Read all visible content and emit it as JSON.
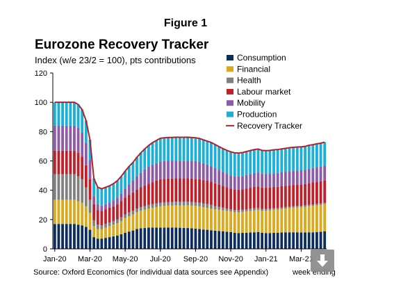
{
  "figure_label": "Figure 1",
  "source_note": "Source: Oxford Economics (for individual data sources see Appendix)",
  "x_unit_label": "week ending",
  "download_icon": "download-arrow-icon",
  "chart_data": {
    "type": "bar",
    "stacked": true,
    "title": "Eurozone Recovery Tracker",
    "subtitle": "Index (w/e 23/2 = 100), pts contributions",
    "xlabel": "week ending",
    "ylabel": "",
    "ylim": [
      0,
      120
    ],
    "yticks": [
      0,
      20,
      40,
      60,
      80,
      100,
      120
    ],
    "xtick_labels": [
      "Jan-20",
      "Mar-20",
      "May-20",
      "Jul-20",
      "Sep-20",
      "Nov-20",
      "Jan-21",
      "Mar-21"
    ],
    "xtick_positions": [
      0,
      9,
      18,
      27,
      36,
      45,
      54,
      63
    ],
    "grid": false,
    "legend_position": "top-right",
    "categories": [
      "w1",
      "w2",
      "w3",
      "w4",
      "w5",
      "w6",
      "w7",
      "w8",
      "w9",
      "w10",
      "w11",
      "w12",
      "w13",
      "w14",
      "w15",
      "w16",
      "w17",
      "w18",
      "w19",
      "w20",
      "w21",
      "w22",
      "w23",
      "w24",
      "w25",
      "w26",
      "w27",
      "w28",
      "w29",
      "w30",
      "w31",
      "w32",
      "w33",
      "w34",
      "w35",
      "w36",
      "w37",
      "w38",
      "w39",
      "w40",
      "w41",
      "w42",
      "w43",
      "w44",
      "w45",
      "w46",
      "w47",
      "w48",
      "w49",
      "w50",
      "w51",
      "w52",
      "w53",
      "w54",
      "w55",
      "w56",
      "w57",
      "w58",
      "w59",
      "w60",
      "w61",
      "w62",
      "w63",
      "w64",
      "w65",
      "w66",
      "w67",
      "w68",
      "w69",
      "w70"
    ],
    "series": [
      {
        "name": "Consumption",
        "color": "#0d2d5e",
        "values": [
          17.0,
          17.0,
          17.0,
          17.0,
          17.0,
          17.0,
          16.5,
          16.0,
          15.0,
          13.0,
          8.0,
          7.0,
          7.0,
          7.5,
          8.0,
          8.5,
          9.0,
          10.0,
          11.0,
          11.8,
          12.5,
          13.5,
          14.0,
          14.2,
          14.5,
          14.5,
          14.5,
          14.5,
          14.5,
          14.5,
          14.5,
          14.5,
          14.4,
          14.3,
          14.2,
          14.0,
          13.8,
          13.5,
          13.2,
          13.0,
          12.7,
          12.4,
          12.2,
          12.0,
          11.7,
          11.5,
          11.0,
          10.8,
          10.9,
          11.0,
          11.2,
          11.3,
          11.5,
          11.0,
          10.8,
          10.8,
          11.0,
          11.0,
          11.2,
          11.3,
          11.3,
          11.3,
          11.3,
          11.2,
          11.2,
          11.3,
          11.3,
          11.5,
          11.6,
          12.0
        ]
      },
      {
        "name": "Financial",
        "color": "#d9a91e",
        "values": [
          16.5,
          16.5,
          16.5,
          16.5,
          16.5,
          16.5,
          16.0,
          15.5,
          14.0,
          11.5,
          7.5,
          6.5,
          6.5,
          7.0,
          7.5,
          8.0,
          8.5,
          9.0,
          10.0,
          10.5,
          11.0,
          11.5,
          12.0,
          12.5,
          13.0,
          13.5,
          14.0,
          14.5,
          14.8,
          15.0,
          15.0,
          15.2,
          15.2,
          15.3,
          15.5,
          15.5,
          15.5,
          15.5,
          15.2,
          15.0,
          14.8,
          14.6,
          14.4,
          14.3,
          14.2,
          14.0,
          14.0,
          14.1,
          14.3,
          14.5,
          14.7,
          14.9,
          15.0,
          15.0,
          15.2,
          15.5,
          15.7,
          15.8,
          16.0,
          16.2,
          16.5,
          16.8,
          17.0,
          17.2,
          17.5,
          17.8,
          18.0,
          18.2,
          18.4,
          18.5
        ]
      },
      {
        "name": "Health",
        "color": "#808080",
        "values": [
          17.5,
          17.5,
          17.5,
          17.5,
          17.5,
          17.5,
          17.0,
          16.0,
          13.0,
          9.0,
          4.0,
          3.0,
          2.5,
          2.5,
          2.5,
          2.5,
          2.5,
          2.5,
          2.5,
          2.5,
          2.5,
          2.5,
          2.5,
          2.5,
          2.5,
          2.5,
          2.5,
          2.5,
          2.5,
          2.5,
          2.5,
          2.5,
          2.5,
          2.5,
          2.5,
          2.5,
          2.5,
          2.5,
          2.5,
          2.5,
          2.5,
          2.2,
          2.0,
          1.8,
          1.6,
          1.5,
          1.5,
          1.5,
          1.5,
          1.5,
          1.5,
          1.5,
          1.5,
          1.3,
          1.2,
          1.1,
          1.0,
          1.0,
          1.0,
          1.0,
          1.0,
          1.0,
          1.0,
          1.0,
          1.0,
          1.0,
          1.0,
          1.0,
          1.0,
          1.0
        ]
      },
      {
        "name": "Labour market",
        "color": "#c0202a",
        "values": [
          16.0,
          16.0,
          16.0,
          16.0,
          16.0,
          16.0,
          16.0,
          15.5,
          15.0,
          14.0,
          11.0,
          10.0,
          10.0,
          10.0,
          10.0,
          10.0,
          10.5,
          11.0,
          11.5,
          12.0,
          12.5,
          13.0,
          13.5,
          14.0,
          14.5,
          15.0,
          15.5,
          16.0,
          16.0,
          16.0,
          16.0,
          16.0,
          16.0,
          16.0,
          16.0,
          16.0,
          16.0,
          16.0,
          16.0,
          16.0,
          15.8,
          15.5,
          15.2,
          14.8,
          14.5,
          14.2,
          14.0,
          14.0,
          14.0,
          14.2,
          14.3,
          14.5,
          14.6,
          14.5,
          14.5,
          14.5,
          14.5,
          14.5,
          14.5,
          14.5,
          14.5,
          14.5,
          14.5,
          14.5,
          14.5,
          14.8,
          15.0,
          15.0,
          15.0,
          15.0
        ]
      },
      {
        "name": "Mobility",
        "color": "#8e5ba6",
        "values": [
          17.0,
          17.0,
          17.0,
          17.0,
          17.0,
          17.0,
          17.0,
          16.5,
          15.5,
          13.0,
          5.5,
          4.0,
          3.5,
          3.5,
          3.5,
          4.0,
          4.5,
          5.0,
          6.0,
          7.0,
          8.0,
          9.0,
          10.0,
          11.0,
          11.5,
          12.0,
          12.0,
          12.0,
          12.0,
          12.0,
          12.0,
          12.0,
          12.0,
          12.0,
          12.0,
          12.0,
          12.0,
          11.8,
          11.5,
          11.0,
          10.8,
          10.5,
          10.0,
          9.5,
          9.2,
          9.0,
          9.0,
          9.0,
          9.0,
          9.2,
          9.4,
          9.5,
          9.5,
          9.4,
          9.3,
          9.3,
          9.4,
          9.5,
          9.5,
          9.6,
          9.7,
          9.7,
          9.7,
          9.7,
          9.7,
          9.8,
          9.8,
          10.0,
          10.1,
          10.3
        ]
      },
      {
        "name": "Production",
        "color": "#1ab0d8",
        "values": [
          16.0,
          16.0,
          16.0,
          16.0,
          16.0,
          16.0,
          16.0,
          15.5,
          15.0,
          14.0,
          12.0,
          11.5,
          11.5,
          11.5,
          11.5,
          11.5,
          11.5,
          12.0,
          12.0,
          12.5,
          12.5,
          13.0,
          13.5,
          14.0,
          14.5,
          15.0,
          15.5,
          16.0,
          16.0,
          16.0,
          16.0,
          16.0,
          16.0,
          16.0,
          16.0,
          16.0,
          16.0,
          16.0,
          16.0,
          16.0,
          16.0,
          16.0,
          16.0,
          16.0,
          16.0,
          16.0,
          16.0,
          16.0,
          16.0,
          16.0,
          16.0,
          16.0,
          16.0,
          16.0,
          16.0,
          16.0,
          16.0,
          16.0,
          16.0,
          16.0,
          16.0,
          16.0,
          16.0,
          16.0,
          16.0,
          16.0,
          16.0,
          16.0,
          16.0,
          16.0
        ]
      }
    ],
    "line": {
      "name": "Recovery Tracker",
      "color": "#b0212b"
    }
  }
}
